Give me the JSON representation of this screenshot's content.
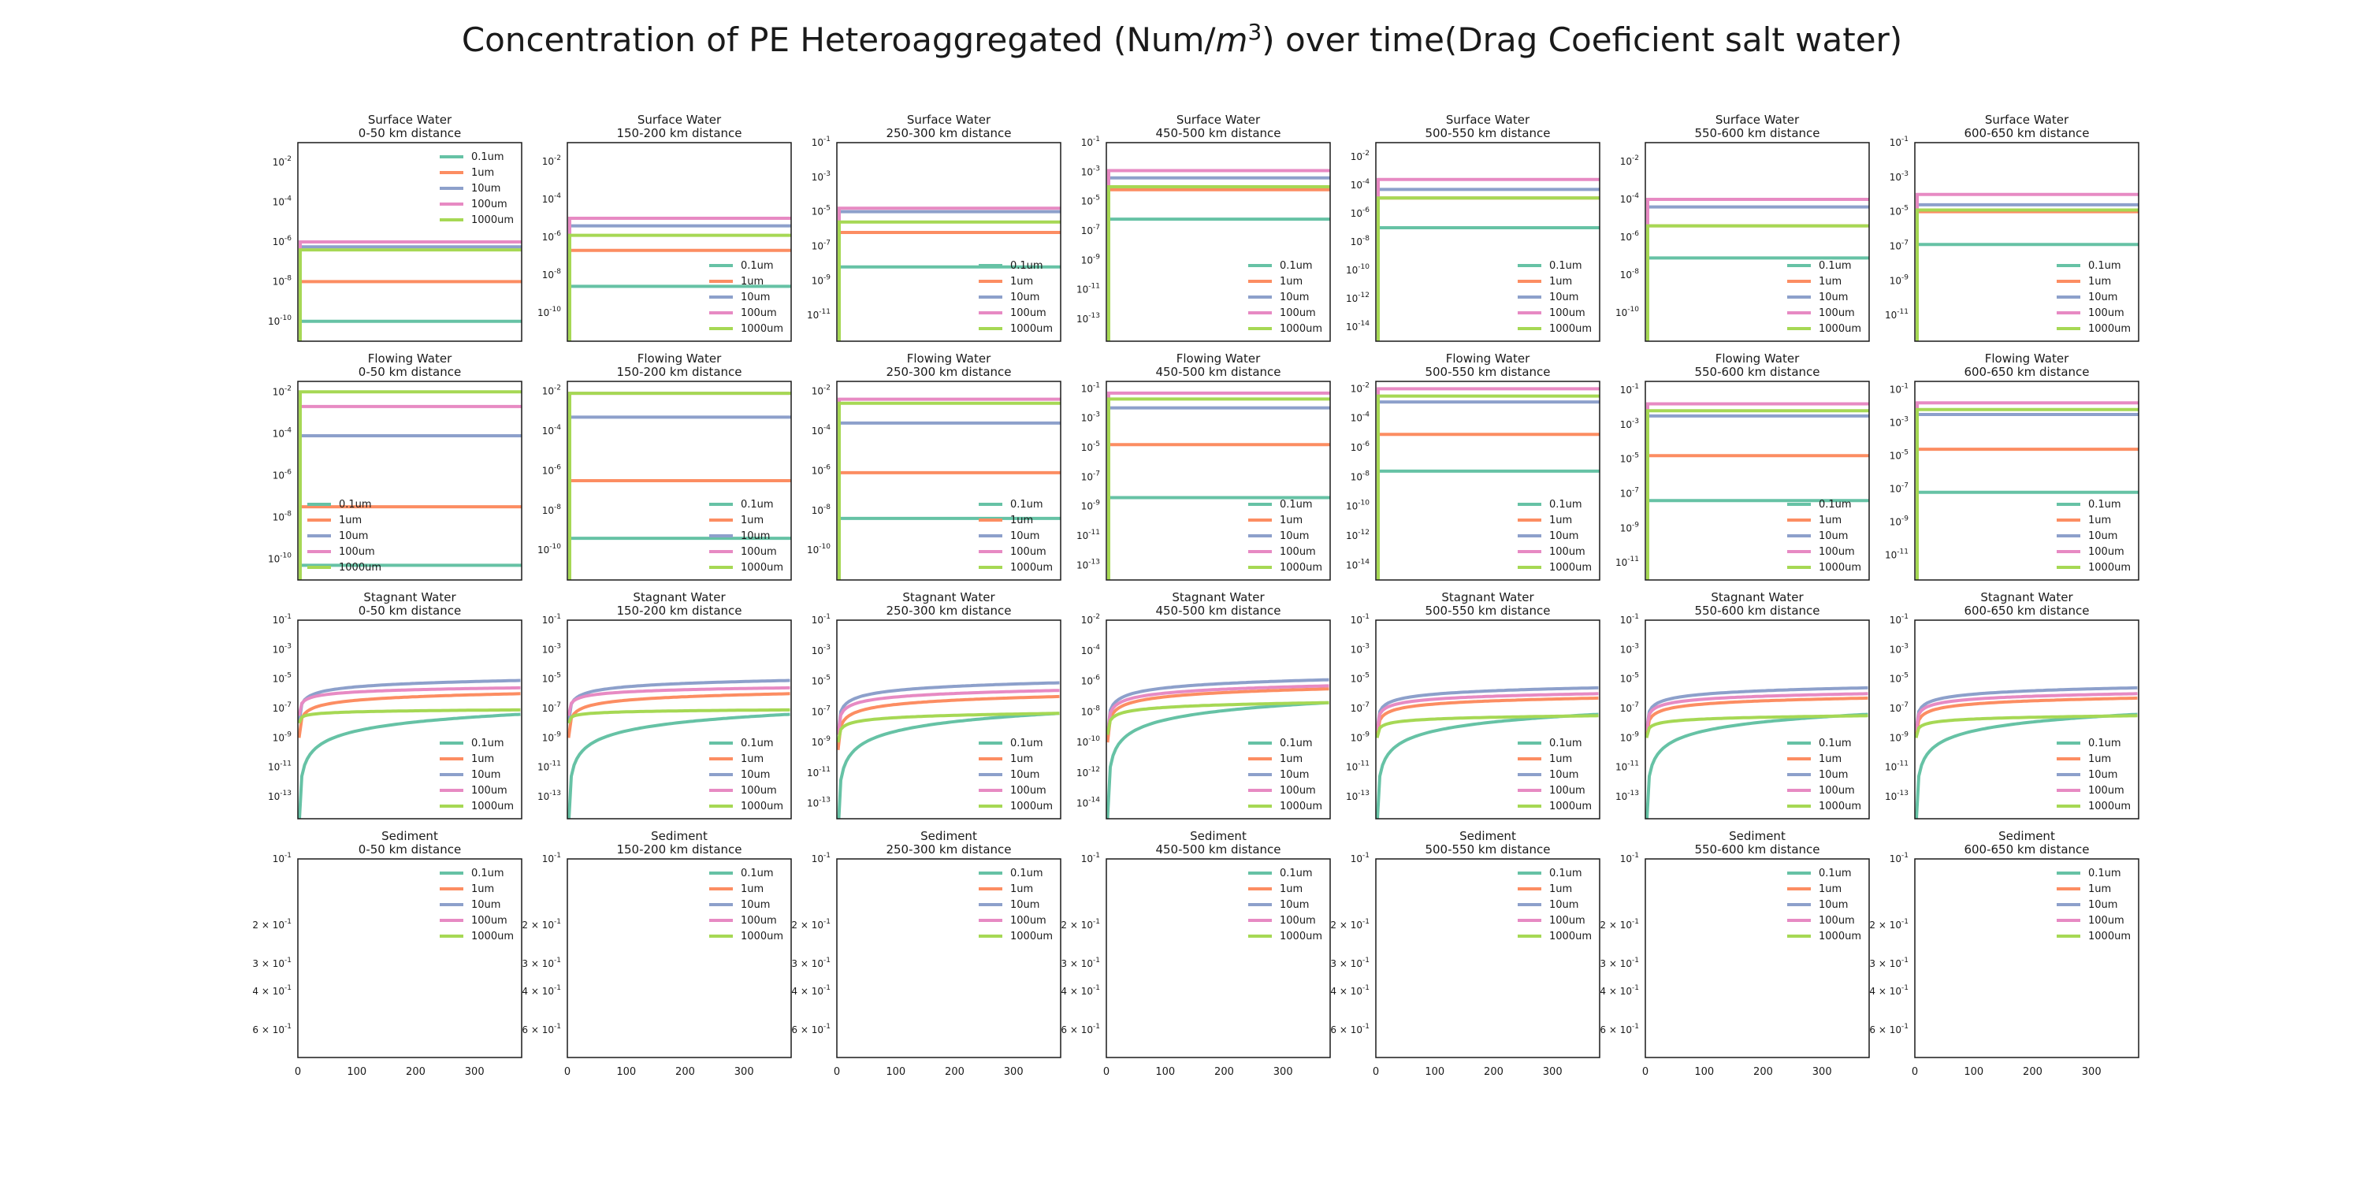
{
  "figure": {
    "title_pre": "Concentration of PE Heteroaggregated (Num/",
    "title_m": "m",
    "title_sup": "3",
    "title_post": ") over time(Drag Coeficient salt water)"
  },
  "colors": {
    "0.1um": "#66c2a5",
    "1um": "#fc8d62",
    "10um": "#8da0cb",
    "100um": "#e78ac3",
    "1000um": "#a6d854"
  },
  "chart_data": {
    "type": "line",
    "grid": false,
    "legend_entries": [
      "0.1um",
      "1um",
      "10um",
      "100um",
      "1000um"
    ],
    "x_range": [
      0,
      380
    ],
    "x_ticks": [
      0,
      100,
      200,
      300
    ],
    "compartments": [
      "Surface Water",
      "Flowing Water",
      "Stagnant Water",
      "Sediment"
    ],
    "distances": [
      "0-50 km distance",
      "150-200 km distance",
      "250-300 km distance",
      "450-500 km distance",
      "500-550 km distance",
      "550-600 km distance",
      "600-650 km distance"
    ],
    "panels": [
      {
        "row": "Surface Water",
        "axes": [
          {
            "ylim": [
              -11,
              -1
            ],
            "ticks": [
              -2,
              -4,
              -6,
              -8,
              -10
            ],
            "legend": "top-right",
            "model": "step",
            "series": {
              "0.1um": -10,
              "1um": -8,
              "10um": -6.25,
              "100um": -6,
              "1000um": -6.4
            }
          },
          {
            "ylim": [
              -11.5,
              -1
            ],
            "ticks": [
              -2,
              -4,
              -6,
              -8,
              -10
            ],
            "legend": "lower-right",
            "model": "step",
            "series": {
              "0.1um": -8.6,
              "1um": -6.7,
              "10um": -5.4,
              "100um": -5,
              "1000um": -5.9
            }
          },
          {
            "ylim": [
              -12.5,
              -1
            ],
            "ticks": [
              -1,
              -3,
              -5,
              -7,
              -9,
              -11
            ],
            "legend": "lower-right",
            "model": "step",
            "series": {
              "0.1um": -8.2,
              "1um": -6.2,
              "10um": -5,
              "100um": -4.8,
              "1000um": -5.6
            }
          },
          {
            "ylim": [
              -14.5,
              -1
            ],
            "ticks": [
              -1,
              -3,
              -5,
              -7,
              -9,
              -11,
              -13
            ],
            "legend": "lower-right",
            "model": "step",
            "series": {
              "0.1um": -6.2,
              "1um": -4.2,
              "10um": -3.4,
              "100um": -2.9,
              "1000um": -4
            }
          },
          {
            "ylim": [
              -15,
              -1
            ],
            "ticks": [
              -2,
              -4,
              -6,
              -8,
              -10,
              -12,
              -14
            ],
            "legend": "lower-right",
            "model": "step",
            "series": {
              "0.1um": -7,
              "1um": -4.9,
              "10um": -4.3,
              "100um": -3.6,
              "1000um": -4.9
            }
          },
          {
            "ylim": [
              -11.5,
              -1
            ],
            "ticks": [
              -2,
              -4,
              -6,
              -8,
              -10
            ],
            "legend": "lower-right",
            "model": "step",
            "series": {
              "0.1um": -7.1,
              "1um": -5.4,
              "10um": -4.4,
              "100um": -4,
              "1000um": -5.4
            }
          },
          {
            "ylim": [
              -12.5,
              -1
            ],
            "ticks": [
              -1,
              -3,
              -5,
              -7,
              -9,
              -11
            ],
            "legend": "lower-right",
            "model": "step",
            "series": {
              "0.1um": -6.9,
              "1um": -5,
              "10um": -4.6,
              "100um": -4,
              "1000um": -4.9
            }
          }
        ]
      },
      {
        "row": "Flowing Water",
        "axes": [
          {
            "ylim": [
              -11,
              -1.5
            ],
            "ticks": [
              -2,
              -4,
              -6,
              -8,
              -10
            ],
            "legend": "lower-left",
            "model": "step",
            "series": {
              "0.1um": -10.3,
              "1um": -7.5,
              "10um": -4.1,
              "100um": -2.7,
              "1000um": -2
            }
          },
          {
            "ylim": [
              -11.5,
              -1.5
            ],
            "ticks": [
              -2,
              -4,
              -6,
              -8,
              -10
            ],
            "legend": "lower-right",
            "model": "step",
            "series": {
              "0.1um": -9.4,
              "1um": -6.5,
              "10um": -3.3,
              "100um": -2.1,
              "1000um": -2.1
            }
          },
          {
            "ylim": [
              -11.5,
              -1.5
            ],
            "ticks": [
              -2,
              -4,
              -6,
              -8,
              -10
            ],
            "legend": "lower-right",
            "model": "step",
            "series": {
              "0.1um": -8.4,
              "1um": -6.1,
              "10um": -3.6,
              "100um": -2.4,
              "1000um": -2.6
            }
          },
          {
            "ylim": [
              -14,
              -0.5
            ],
            "ticks": [
              -1,
              -3,
              -5,
              -7,
              -9,
              -11,
              -13
            ],
            "legend": "lower-right",
            "model": "step",
            "series": {
              "0.1um": -8.4,
              "1um": -4.8,
              "10um": -2.3,
              "100um": -1.3,
              "1000um": -1.7
            }
          },
          {
            "ylim": [
              -15,
              -1.5
            ],
            "ticks": [
              -2,
              -4,
              -6,
              -8,
              -10,
              -12,
              -14
            ],
            "legend": "lower-right",
            "model": "step",
            "series": {
              "0.1um": -7.6,
              "1um": -5.1,
              "10um": -2.9,
              "100um": -2,
              "1000um": -2.5
            }
          },
          {
            "ylim": [
              -12,
              -0.5
            ],
            "ticks": [
              -1,
              -3,
              -5,
              -7,
              -9,
              -11
            ],
            "legend": "lower-right",
            "model": "step",
            "series": {
              "0.1um": -7.4,
              "1um": -4.8,
              "10um": -2.5,
              "100um": -1.8,
              "1000um": -2.2
            }
          },
          {
            "ylim": [
              -12.5,
              -0.5
            ],
            "ticks": [
              -1,
              -3,
              -5,
              -7,
              -9,
              -11
            ],
            "legend": "lower-right",
            "model": "step",
            "series": {
              "0.1um": -7.2,
              "1um": -4.6,
              "10um": -2.5,
              "100um": -1.8,
              "1000um": -2.2
            }
          }
        ]
      },
      {
        "row": "Stagnant Water",
        "axes": [
          {
            "ylim": [
              -14.5,
              -1
            ],
            "ticks": [
              -1,
              -3,
              -5,
              -7,
              -9,
              -11,
              -13
            ],
            "legend": "lower-right",
            "model": "growth",
            "series": {
              "0.1um": [
                -15,
                -7.4
              ],
              "1um": [
                -9,
                -6
              ],
              "10um": [
                -8,
                -5.1
              ],
              "100um": [
                -7.5,
                -5.6
              ],
              "1000um": [
                -8,
                -7.1
              ]
            }
          },
          {
            "ylim": [
              -14.5,
              -1
            ],
            "ticks": [
              -1,
              -3,
              -5,
              -7,
              -9,
              -11,
              -13
            ],
            "legend": "lower-right",
            "model": "growth",
            "series": {
              "0.1um": [
                -15,
                -7.4
              ],
              "1um": [
                -9,
                -6
              ],
              "10um": [
                -8,
                -5.1
              ],
              "100um": [
                -7.5,
                -5.6
              ],
              "1000um": [
                -8,
                -7.1
              ]
            }
          },
          {
            "ylim": [
              -14,
              -1
            ],
            "ticks": [
              -1,
              -3,
              -5,
              -7,
              -9,
              -11,
              -13
            ],
            "legend": "lower-right",
            "model": "growth",
            "series": {
              "0.1um": [
                -15,
                -7.1
              ],
              "1um": [
                -9.5,
                -6
              ],
              "10um": [
                -8.5,
                -5.1
              ],
              "100um": [
                -8.5,
                -5.6
              ],
              "1000um": [
                -9,
                -7.1
              ]
            }
          },
          {
            "ylim": [
              -15,
              -2
            ],
            "ticks": [
              -2,
              -4,
              -6,
              -8,
              -10,
              -12,
              -14
            ],
            "legend": "lower-right",
            "model": "growth",
            "series": {
              "0.1um": [
                -15,
                -7.4
              ],
              "1um": [
                -10,
                -6.5
              ],
              "10um": [
                -9.5,
                -5.9
              ],
              "100um": [
                -9.5,
                -6.3
              ],
              "1000um": [
                -9.5,
                -7.4
              ]
            }
          },
          {
            "ylim": [
              -14.5,
              -1
            ],
            "ticks": [
              -1,
              -3,
              -5,
              -7,
              -9,
              -11,
              -13
            ],
            "legend": "lower-right",
            "model": "growth",
            "series": {
              "0.1um": [
                -15,
                -7.4
              ],
              "1um": [
                -9,
                -6.3
              ],
              "10um": [
                -8.5,
                -5.6
              ],
              "100um": [
                -8.5,
                -6
              ],
              "1000um": [
                -9,
                -7.5
              ]
            }
          },
          {
            "ylim": [
              -14.5,
              -1
            ],
            "ticks": [
              -1,
              -3,
              -5,
              -7,
              -9,
              -11,
              -13
            ],
            "legend": "lower-right",
            "model": "growth",
            "series": {
              "0.1um": [
                -15,
                -7.4
              ],
              "1um": [
                -9,
                -6.3
              ],
              "10um": [
                -8.5,
                -5.6
              ],
              "100um": [
                -8.5,
                -6
              ],
              "1000um": [
                -9,
                -7.5
              ]
            }
          },
          {
            "ylim": [
              -14.5,
              -1
            ],
            "ticks": [
              -1,
              -3,
              -5,
              -7,
              -9,
              -11,
              -13
            ],
            "legend": "lower-right",
            "model": "growth",
            "series": {
              "0.1um": [
                -15,
                -7.4
              ],
              "1um": [
                -9,
                -6.3
              ],
              "10um": [
                -8.5,
                -5.6
              ],
              "100um": [
                -8.5,
                -6
              ],
              "1000um": [
                -9,
                -7.5
              ]
            }
          }
        ]
      },
      {
        "row": "Sediment",
        "empty": true,
        "sediment_ticks": [
          {
            "value": 0.1,
            "mantissa": "",
            "exp": "-1"
          },
          {
            "value": 0.2,
            "mantissa": "2 × ",
            "exp": "-1"
          },
          {
            "value": 0.3,
            "mantissa": "3 × ",
            "exp": "-1"
          },
          {
            "value": 0.4,
            "mantissa": "4 × ",
            "exp": "-1"
          },
          {
            "value": 0.6,
            "mantissa": "6 × ",
            "exp": "-1"
          }
        ]
      }
    ]
  }
}
